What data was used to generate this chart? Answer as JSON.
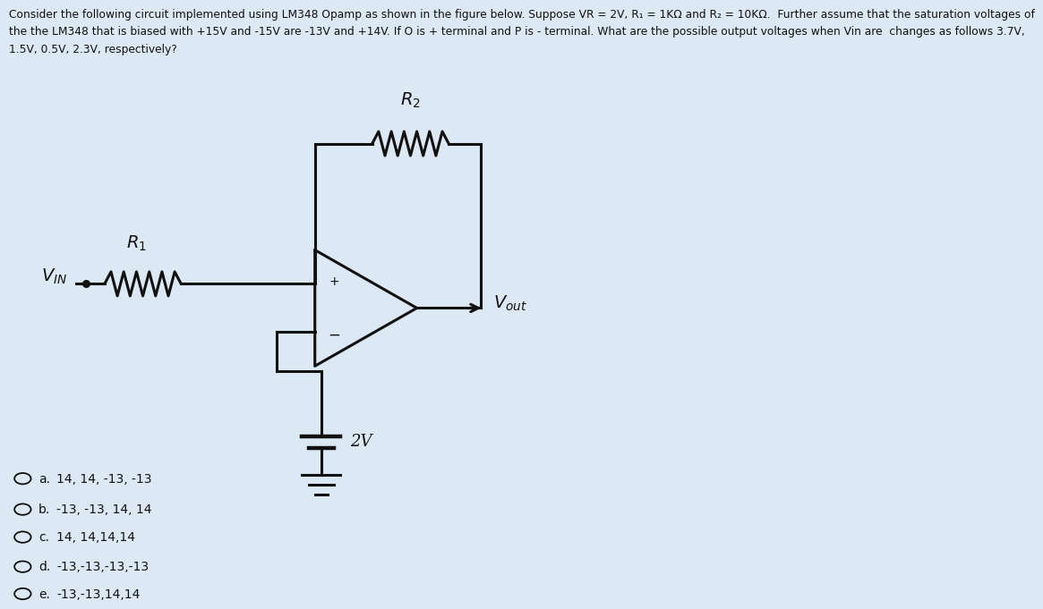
{
  "bg_color": "#dce8f4",
  "panel_color": "#ffffff",
  "title_line1": "Consider the following circuit implemented using LM348 Opamp as shown in the figure below. Suppose VR = 2V, R₁ = 1KΩ and R₂ = 10KΩ.  Further assume that the saturation voltages of",
  "title_line2": "the the LM348 that is biased with +15V and -15V are -13V and +14V. If O is + terminal and P is - terminal. What are the possible output voltages when Vin are  changes as follows 3.7V,",
  "title_line3": "1.5V, 0.5V, 2.3V, respectively?",
  "title_fontsize": 8.8,
  "choices": [
    "14, 14, -13, -13",
    "-13, -13, 14, 14",
    "14, 14,14,14",
    "-13,-13,-13,-13",
    "-13,-13,14,14"
  ],
  "choice_labels": [
    "a.",
    "b.",
    "c.",
    "d.",
    "e."
  ],
  "choices_fontsize": 10
}
